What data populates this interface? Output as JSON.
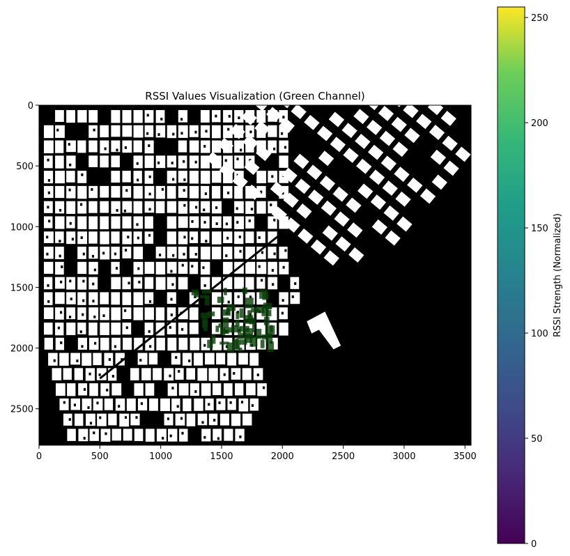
{
  "chart_data": [
    {
      "type": "heatmap",
      "title": "RSSI Values Visualization (Green Channel)",
      "xlabel": "",
      "ylabel": "",
      "xlim": [
        0,
        3550
      ],
      "ylim": [
        2800,
        0
      ],
      "xticks": [
        "0",
        "500",
        "1000",
        "1500",
        "2000",
        "2500",
        "3000",
        "3500"
      ],
      "yticks": [
        "0",
        "500",
        "1000",
        "1500",
        "2000",
        "2500"
      ],
      "background_color": "#000000",
      "building_color": "#ffffff",
      "signal_color": "#0a3d0a",
      "signal_region": {
        "x": [
          1250,
          1900
        ],
        "y": [
          1500,
          2000
        ]
      },
      "diagonal_road": {
        "from": [
          500,
          2250
        ],
        "to": [
          2000,
          1050
        ]
      }
    },
    {
      "type": "colorbar",
      "label": "RSSI Strength (Normalized)",
      "colormap": "viridis",
      "range": [
        0,
        255
      ],
      "ticks": [
        "0",
        "50",
        "100",
        "150",
        "200",
        "250"
      ]
    }
  ]
}
